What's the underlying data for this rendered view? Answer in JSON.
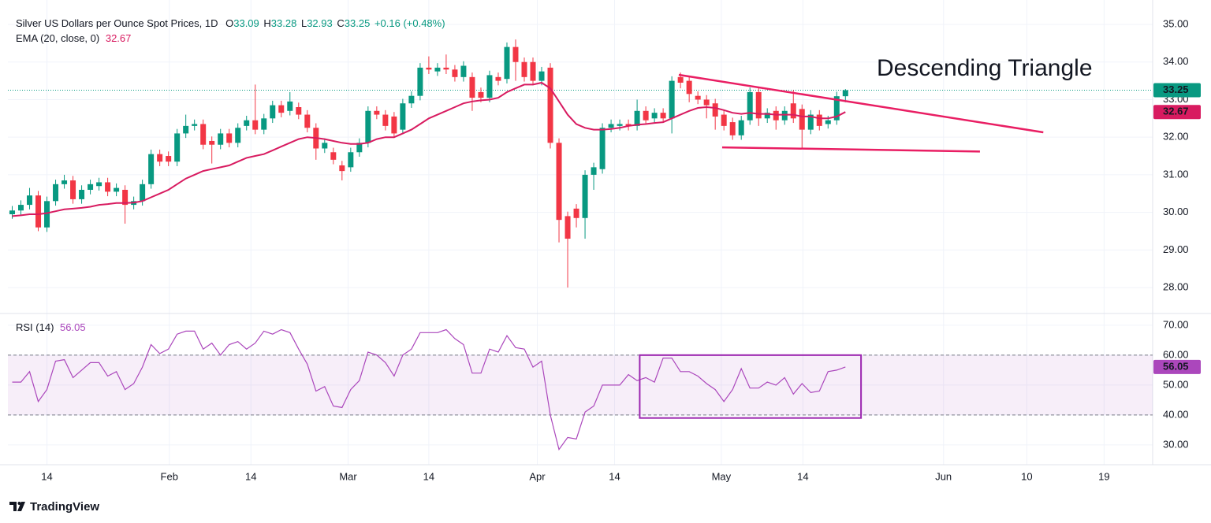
{
  "chart_data": {
    "type": "candlestick",
    "title": "Silver US Dollars per Ounce Spot Prices, 1D",
    "ohlc_labels": [
      "O",
      "H",
      "L",
      "C"
    ],
    "change_label": "+0.16 (+0.48%)",
    "up_color": "#089981",
    "down_color": "#f23645",
    "open": [
      29.95,
      30.05,
      30.2,
      30.45,
      29.6,
      30.3,
      30.75,
      30.85,
      30.35,
      30.6,
      30.7,
      30.8,
      30.55,
      30.6,
      30.2,
      30.3,
      30.75,
      31.55,
      31.5,
      31.35,
      32.1,
      32.3,
      32.35,
      31.9,
      31.8,
      32.1,
      31.85,
      32.3,
      32.45,
      32.2,
      32.5,
      32.85,
      32.7,
      32.8,
      32.6,
      32.25,
      31.7,
      31.6,
      31.25,
      31.2,
      31.6,
      31.85,
      32.7,
      32.6,
      32.55,
      32.2,
      32.9,
      33.1,
      33.85,
      33.75,
      33.85,
      33.8,
      33.6,
      33.6,
      33.2,
      33.05,
      33.6,
      33.55,
      34.4,
      34.0,
      34.0,
      33.5,
      33.85,
      31.85,
      29.9,
      30.1,
      29.85,
      31.0,
      31.15,
      32.25,
      32.3,
      32.35,
      32.3,
      32.7,
      32.5,
      32.65,
      32.5,
      33.6,
      33.5,
      33.1,
      33.0,
      32.9,
      32.6,
      32.4,
      32.05,
      32.45,
      33.2,
      32.5,
      32.7,
      32.45,
      32.9,
      32.75,
      32.2,
      32.6,
      32.35,
      32.45,
      33.09
    ],
    "high": [
      30.17,
      30.32,
      30.65,
      30.57,
      30.42,
      30.87,
      31.0,
      30.97,
      30.72,
      30.87,
      30.92,
      30.92,
      30.77,
      30.72,
      30.42,
      30.87,
      31.67,
      31.67,
      31.62,
      32.22,
      32.6,
      32.47,
      32.47,
      32.02,
      32.22,
      32.22,
      32.37,
      32.57,
      33.4,
      32.62,
      32.97,
      32.97,
      33.2,
      32.92,
      32.72,
      32.37,
      31.97,
      31.72,
      31.37,
      31.72,
      31.97,
      32.82,
      32.82,
      32.72,
      32.67,
      33.02,
      33.22,
      33.97,
      34.15,
      33.97,
      34.2,
      33.92,
      34.02,
      33.72,
      33.32,
      33.77,
      33.72,
      34.52,
      34.6,
      34.12,
      34.12,
      33.87,
      33.97,
      31.97,
      30.02,
      30.22,
      31.12,
      31.32,
      32.37,
      32.47,
      32.47,
      32.47,
      33.0,
      32.82,
      32.77,
      32.77,
      33.62,
      33.72,
      33.62,
      33.22,
      33.12,
      33.02,
      32.72,
      32.52,
      32.57,
      33.32,
      33.32,
      32.77,
      32.82,
      32.82,
      33.25,
      32.87,
      32.72,
      32.72,
      32.57,
      33.21,
      33.28
    ],
    "low": [
      29.83,
      29.93,
      30.08,
      29.5,
      29.48,
      30.18,
      30.63,
      30.23,
      30.23,
      30.48,
      30.58,
      30.43,
      30.43,
      29.7,
      30.08,
      30.18,
      30.63,
      31.23,
      31.23,
      31.23,
      31.98,
      32.18,
      31.68,
      31.3,
      31.68,
      31.73,
      31.73,
      32.18,
      32.08,
      32.08,
      32.38,
      32.53,
      32.58,
      32.48,
      32.13,
      31.4,
      31.58,
      31.28,
      30.85,
      31.08,
      31.48,
      31.73,
      32.48,
      32.18,
      31.98,
      32.08,
      32.78,
      32.98,
      33.68,
      33.63,
      33.68,
      33.48,
      33.48,
      32.7,
      32.93,
      32.93,
      33.38,
      33.43,
      33.5,
      33.48,
      33.38,
      33.38,
      31.7,
      29.2,
      28.0,
      29.6,
      29.3,
      30.6,
      31.03,
      32.13,
      32.18,
      32.18,
      32.18,
      32.33,
      32.38,
      32.38,
      32.1,
      33.3,
      32.93,
      32.88,
      32.5,
      32.2,
      32.18,
      31.93,
      31.93,
      32.33,
      32.3,
      32.38,
      32.2,
      32.33,
      32.38,
      31.7,
      32.08,
      32.18,
      32.23,
      32.33,
      32.93
    ],
    "close": [
      30.05,
      30.2,
      30.45,
      29.6,
      30.3,
      30.75,
      30.85,
      30.35,
      30.6,
      30.75,
      30.8,
      30.55,
      30.65,
      30.2,
      30.3,
      30.75,
      31.55,
      31.35,
      31.35,
      32.1,
      32.3,
      32.35,
      31.8,
      31.8,
      32.1,
      31.85,
      32.25,
      32.45,
      32.2,
      32.5,
      32.85,
      32.65,
      32.95,
      32.6,
      32.25,
      31.7,
      31.85,
      31.4,
      31.1,
      31.6,
      31.85,
      32.7,
      32.6,
      32.3,
      32.1,
      32.9,
      33.1,
      33.85,
      33.8,
      33.85,
      33.8,
      33.6,
      33.9,
      33.05,
      33.05,
      33.65,
      33.5,
      34.4,
      34.0,
      33.6,
      33.5,
      33.75,
      31.85,
      29.8,
      29.3,
      29.85,
      31.0,
      31.2,
      32.25,
      32.35,
      32.35,
      32.3,
      32.7,
      32.45,
      32.65,
      32.5,
      33.5,
      33.45,
      33.15,
      33.0,
      32.85,
      32.55,
      32.3,
      32.05,
      32.45,
      33.2,
      32.5,
      32.65,
      32.45,
      32.7,
      32.5,
      32.2,
      32.6,
      32.3,
      32.45,
      33.09,
      33.25
    ],
    "ema": {
      "name": "EMA (20, close, 0)",
      "color": "#d81b60",
      "values": [
        29.9,
        29.92,
        29.95,
        29.95,
        29.98,
        30.03,
        30.08,
        30.1,
        30.12,
        30.15,
        30.2,
        30.22,
        30.25,
        30.25,
        30.26,
        30.3,
        30.4,
        30.5,
        30.6,
        30.75,
        30.9,
        31.0,
        31.1,
        31.15,
        31.2,
        31.25,
        31.35,
        31.45,
        31.5,
        31.55,
        31.65,
        31.75,
        31.85,
        31.95,
        32.0,
        31.98,
        31.95,
        31.9,
        31.85,
        31.82,
        31.82,
        31.85,
        31.95,
        32.0,
        32.0,
        32.1,
        32.2,
        32.35,
        32.5,
        32.6,
        32.7,
        32.8,
        32.9,
        32.95,
        32.98,
        33.0,
        33.05,
        33.2,
        33.3,
        33.4,
        33.4,
        33.45,
        33.3,
        32.95,
        32.6,
        32.35,
        32.25,
        32.2,
        32.2,
        32.22,
        32.25,
        32.3,
        32.33,
        32.35,
        32.38,
        32.4,
        32.5,
        32.6,
        32.7,
        32.78,
        32.8,
        32.78,
        32.72,
        32.65,
        32.62,
        32.65,
        32.62,
        32.62,
        32.6,
        32.6,
        32.6,
        32.55,
        32.55,
        32.5,
        32.5,
        32.55,
        32.67
      ]
    },
    "xlim": [
      -0.5,
      131.4
    ],
    "xticks": [
      {
        "value": 4,
        "label": "14"
      },
      {
        "value": 18.1,
        "label": "Feb"
      },
      {
        "value": 27.5,
        "label": "14"
      },
      {
        "value": 38.7,
        "label": "Mar"
      },
      {
        "value": 48,
        "label": "14"
      },
      {
        "value": 60.5,
        "label": "Apr"
      },
      {
        "value": 69.4,
        "label": "14"
      },
      {
        "value": 81.7,
        "label": "May"
      },
      {
        "value": 91.1,
        "label": "14"
      },
      {
        "value": 107.3,
        "label": "Jun"
      },
      {
        "value": 116.9,
        "label": "10"
      },
      {
        "value": 125.8,
        "label": "19"
      }
    ],
    "ylim": [
      27.31,
      35.65
    ],
    "yticks": [
      {
        "value": 28,
        "label": "28.00"
      },
      {
        "value": 29,
        "label": "29.00"
      },
      {
        "value": 30,
        "label": "30.00"
      },
      {
        "value": 31,
        "label": "31.00"
      },
      {
        "value": 32,
        "label": "32.00"
      },
      {
        "value": 33,
        "label": "33.00"
      },
      {
        "value": 34,
        "label": "34.00"
      },
      {
        "value": 35,
        "label": "35.00"
      }
    ],
    "grid": true,
    "annotation": {
      "text": "Descending Triangle",
      "color": "#e91e63"
    },
    "trendlines": [
      {
        "x": [
          76.8,
          118.8
        ],
        "y": [
          33.66,
          32.13
        ],
        "color": "#e91e63"
      },
      {
        "x": [
          81.8,
          111.5
        ],
        "y": [
          31.73,
          31.62
        ],
        "color": "#e91e63"
      }
    ],
    "rsi": {
      "name": "RSI (14)",
      "color": "#ab47bc",
      "values": [
        51,
        51,
        54.5,
        44.5,
        48.5,
        58,
        58.5,
        52.5,
        55,
        57.5,
        57.5,
        53,
        54.5,
        48.5,
        50.5,
        56,
        63.5,
        60.5,
        62,
        67,
        68,
        68,
        62,
        64,
        60,
        63.5,
        64.5,
        62,
        64,
        68,
        67,
        68.5,
        67.5,
        62,
        57,
        48,
        49.5,
        43,
        42.5,
        48.5,
        51.5,
        61,
        60,
        57.5,
        53,
        60,
        62,
        67.5,
        67.5,
        67.5,
        68.5,
        65.5,
        63.5,
        54,
        54,
        62,
        61,
        66.5,
        62.5,
        62,
        56,
        58,
        40,
        28.5,
        32.5,
        32,
        41,
        43,
        50,
        50,
        50,
        53.5,
        51.5,
        52.5,
        51,
        59,
        59,
        54.5,
        54.5,
        53,
        50.5,
        48.5,
        44.5,
        48.5,
        55.5,
        49,
        49,
        51,
        50,
        52.5,
        47,
        50.5,
        47.5,
        48,
        54.5,
        55,
        56.05
      ],
      "ylim": [
        23.4,
        73.9
      ],
      "yticks": [
        {
          "value": 30,
          "label": "30.00"
        },
        {
          "value": 40,
          "label": "40.00"
        },
        {
          "value": 50,
          "label": "50.00"
        },
        {
          "value": 60,
          "label": "60.00"
        },
        {
          "value": 70,
          "label": "70.00"
        }
      ],
      "band": [
        40,
        60
      ],
      "box": {
        "x": [
          72.3,
          97.8
        ],
        "y": [
          39,
          60
        ],
        "color": "#9c27b0"
      }
    }
  },
  "watermark": "TradingView"
}
